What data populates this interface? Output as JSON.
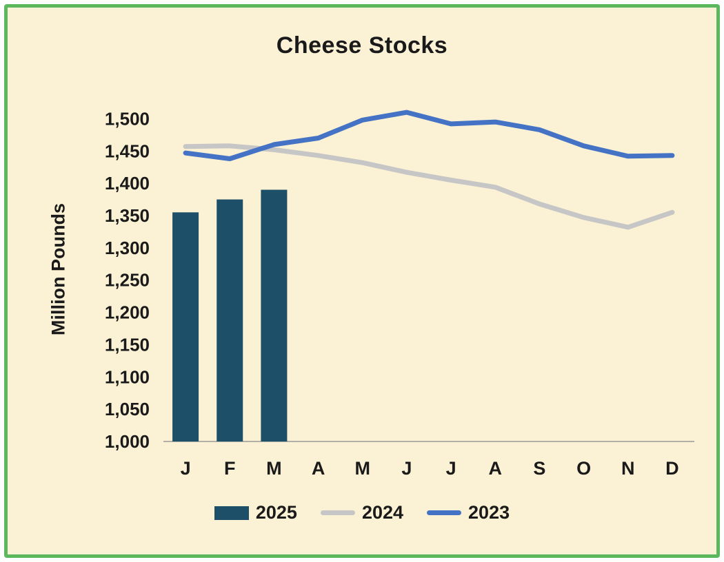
{
  "title": "Cheese Stocks",
  "colors": {
    "background": "#FBF1D4",
    "border": "#5CB85C",
    "bar_2025": "#1D5068",
    "line_2024": "#C6C6C6",
    "line_2023": "#4472C4",
    "axis": "#999999",
    "text": "#1a1a1a"
  },
  "chart_data": {
    "type": "bar+line",
    "title": "Cheese Stocks",
    "xlabel": "",
    "ylabel": "Million Pounds",
    "categories": [
      "J",
      "F",
      "M",
      "A",
      "M",
      "J",
      "J",
      "A",
      "S",
      "O",
      "N",
      "D"
    ],
    "ylim": [
      1000,
      1525
    ],
    "yticks": [
      1000,
      1050,
      1100,
      1150,
      1200,
      1250,
      1300,
      1350,
      1400,
      1450,
      1500
    ],
    "grid": false,
    "legend_position": "bottom",
    "series": [
      {
        "name": "2025",
        "type": "bar",
        "color": "#1D5068",
        "values": [
          1355,
          1375,
          1390,
          null,
          null,
          null,
          null,
          null,
          null,
          null,
          null,
          null
        ]
      },
      {
        "name": "2024",
        "type": "line",
        "color": "#C6C6C6",
        "values": [
          1457,
          1458,
          1452,
          1443,
          1432,
          1417,
          1405,
          1394,
          1368,
          1347,
          1332,
          1355
        ]
      },
      {
        "name": "2023",
        "type": "line",
        "color": "#4472C4",
        "values": [
          1447,
          1438,
          1460,
          1470,
          1498,
          1510,
          1492,
          1495,
          1483,
          1458,
          1442,
          1443
        ]
      }
    ]
  }
}
